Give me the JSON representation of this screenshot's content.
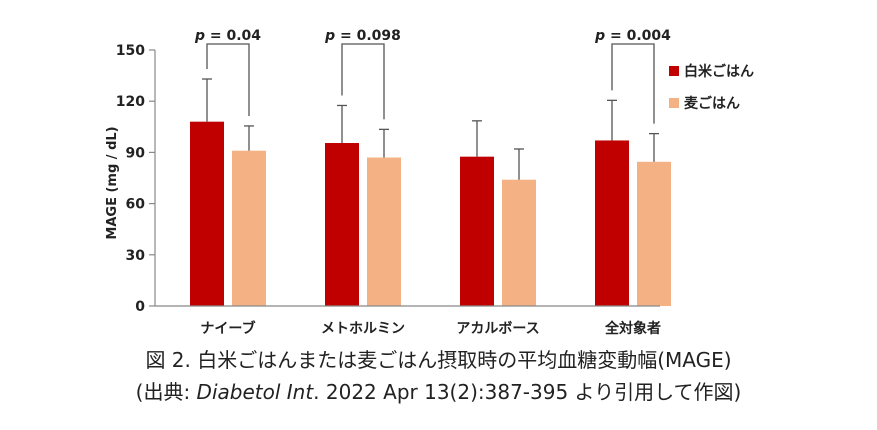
{
  "chart_data": {
    "type": "bar",
    "ylabel": "MAGE (mg / dL)",
    "ylim": [
      0,
      150
    ],
    "yticks": [
      "0",
      "30",
      "60",
      "90",
      "120",
      "150"
    ],
    "categories": [
      "ナイーブ",
      "メトホルミン",
      "アカルボース",
      "全対象者"
    ],
    "series": [
      {
        "name": "白米ごはん",
        "color": "#c00000",
        "values": [
          108,
          95.5,
          87.5,
          97
        ],
        "errors": [
          25,
          22,
          21,
          23.5
        ]
      },
      {
        "name": "麦ごはん",
        "color": "#f4b183",
        "values": [
          91,
          87,
          74,
          84.5
        ],
        "errors": [
          14.5,
          16.5,
          18,
          16.5
        ]
      }
    ],
    "annotations": [
      {
        "category_index": 0,
        "label_prefix": "p",
        "label_value": " = 0.04"
      },
      {
        "category_index": 1,
        "label_prefix": "p",
        "label_value": " = 0.098"
      },
      {
        "category_index": 3,
        "label_prefix": "p",
        "label_value": " = 0.004"
      }
    ],
    "legend_placement": "right",
    "grid": false
  },
  "caption": {
    "line1": "図 2. 白米ごはんまたは麦ごはん摂取時の平均血糖変動幅(MAGE)",
    "line2_prefix": "(出典: ",
    "line2_italic": "Diabetol Int",
    "line2_suffix": ". 2022 Apr 13(2):387-395 より引用して作図)"
  }
}
